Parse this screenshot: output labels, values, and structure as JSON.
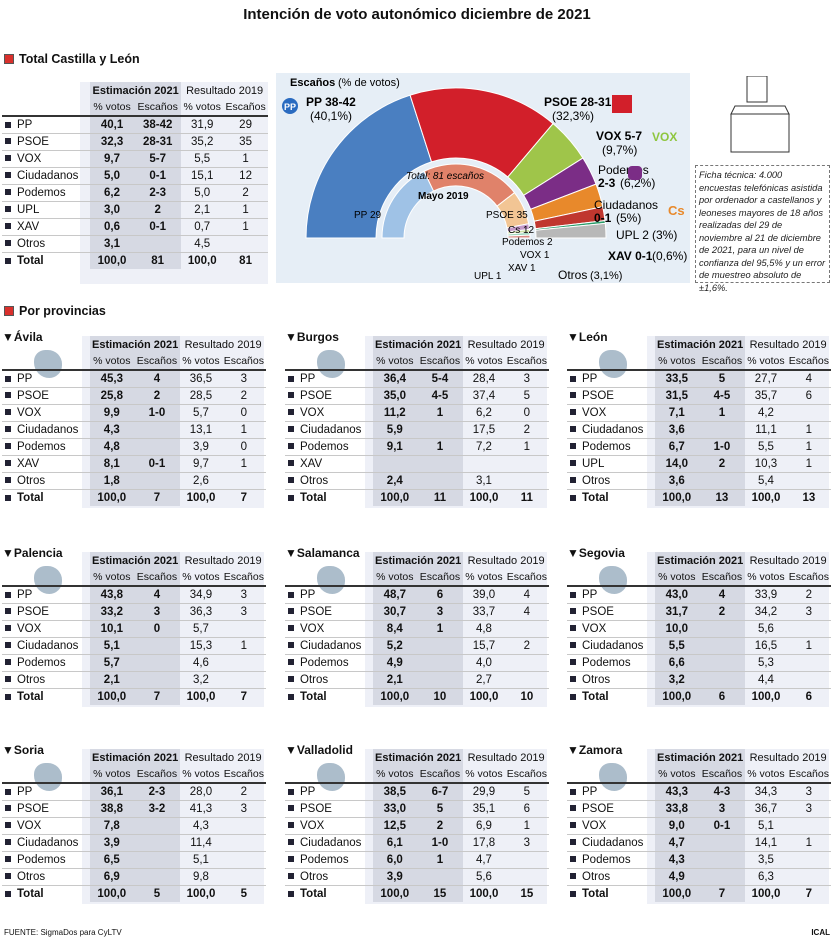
{
  "title": "Intención de voto autonómico diciembre de 2021",
  "total_section": "Total Castilla y León",
  "provinces_section": "Por provincias",
  "headers": {
    "est": "Estimación 2021",
    "res": "Resultado 2019",
    "pct": "% votos",
    "esc": "Escaños"
  },
  "total_rows": [
    {
      "party": "PP",
      "e_pct": "40,1",
      "e_esc": "38-42",
      "r_pct": "31,9",
      "r_esc": "29"
    },
    {
      "party": "PSOE",
      "e_pct": "32,3",
      "e_esc": "28-31",
      "r_pct": "35,2",
      "r_esc": "35"
    },
    {
      "party": "VOX",
      "e_pct": "9,7",
      "e_esc": "5-7",
      "r_pct": "5,5",
      "r_esc": "1"
    },
    {
      "party": "Ciudadanos",
      "e_pct": "5,0",
      "e_esc": "0-1",
      "r_pct": "15,1",
      "r_esc": "12"
    },
    {
      "party": "Podemos",
      "e_pct": "6,2",
      "e_esc": "2-3",
      "r_pct": "5,0",
      "r_esc": "2"
    },
    {
      "party": "UPL",
      "e_pct": "3,0",
      "e_esc": "2",
      "r_pct": "2,1",
      "r_esc": "1"
    },
    {
      "party": "XAV",
      "e_pct": "0,6",
      "e_esc": "0-1",
      "r_pct": "0,7",
      "r_esc": "1"
    },
    {
      "party": "Otros",
      "e_pct": "3,1",
      "e_esc": "",
      "r_pct": "4,5",
      "r_esc": ""
    },
    {
      "party": "Total",
      "e_pct": "100,0",
      "e_esc": "81",
      "r_pct": "100,0",
      "r_esc": "81"
    }
  ],
  "chart": {
    "title": "Escaños",
    "subtitle": "(% de votos)",
    "total_label": "Total: 81 escaños",
    "mayo": "Mayo 2019",
    "labels": {
      "pp": "PP 38-42",
      "pp_pct": "(40,1%)",
      "psoe": "PSOE 28-31",
      "psoe_pct": "(32,3%)",
      "vox": "VOX 5-7",
      "vox_pct": "(9,7%)",
      "pod1": "Podemos",
      "pod2": "2-3",
      "pod_pct": "(6,2%)",
      "cs1": "Ciudadanos",
      "cs2": "0-1",
      "cs_pct": "(5%)",
      "upl": "UPL 2",
      "upl_pct": "(3%)",
      "xav": "XAV 0-1",
      "xav_pct": "(0,6%)",
      "otros": "Otros",
      "otros_pct": "(3,1%)",
      "i_pp": "PP 29",
      "i_psoe": "PSOE 35",
      "i_cs": "Cs 12",
      "i_pod": "Podemos 2",
      "i_vox": "VOX 1",
      "i_xav": "XAV 1",
      "i_upl": "UPL 1"
    },
    "logos": {
      "pp": "PP",
      "vox": "VOX",
      "cs": "Cs"
    }
  },
  "chart_data": {
    "type": "pie",
    "title": "Escaños",
    "series": [
      {
        "name": "Estimación 2021",
        "categories": [
          "PP",
          "PSOE",
          "VOX",
          "Podemos",
          "Ciudadanos",
          "UPL",
          "XAV",
          "Otros"
        ],
        "values": [
          40,
          29,
          6,
          2,
          1,
          2,
          1,
          0
        ]
      },
      {
        "name": "Mayo 2019",
        "categories": [
          "PP",
          "PSOE",
          "Cs",
          "Podemos",
          "VOX",
          "XAV",
          "UPL"
        ],
        "values": [
          29,
          35,
          12,
          2,
          1,
          1,
          1
        ]
      }
    ],
    "colors": {
      "PP": "#4a7fc1",
      "PSOE": "#d21f2a",
      "VOX": "#9fc54a",
      "Podemos": "#7b2d86",
      "Ciudadanos": "#e8892b",
      "UPL": "#c0372f",
      "XAV": "#2a9c6a",
      "Otros": "#b8b8b8"
    }
  },
  "ficha": "Ficha técnica: 4.000 encuestas telefónicas asistida por ordenador a castellanos y leoneses mayores de 18 años realizadas del 29 de noviembre al 21 de diciembre de 2021, para un nivel de confianza del 95,5% y un error de muestreo absoluto de ±1,6%.",
  "provinces": [
    {
      "name": "Ávila",
      "rows": [
        [
          "PP",
          "45,3",
          "4",
          "36,5",
          "3"
        ],
        [
          "PSOE",
          "25,8",
          "2",
          "28,5",
          "2"
        ],
        [
          "VOX",
          "9,9",
          "1-0",
          "5,7",
          "0"
        ],
        [
          "Ciudadanos",
          "4,3",
          "",
          "13,1",
          "1"
        ],
        [
          "Podemos",
          "4,8",
          "",
          "3,9",
          "0"
        ],
        [
          "XAV",
          "8,1",
          "0-1",
          "9,7",
          "1"
        ],
        [
          "Otros",
          "1,8",
          "",
          "2,6",
          ""
        ],
        [
          "Total",
          "100,0",
          "7",
          "100,0",
          "7"
        ]
      ]
    },
    {
      "name": "Burgos",
      "rows": [
        [
          "PP",
          "36,4",
          "5-4",
          "28,4",
          "3"
        ],
        [
          "PSOE",
          "35,0",
          "4-5",
          "37,4",
          "5"
        ],
        [
          "VOX",
          "11,2",
          "1",
          "6,2",
          "0"
        ],
        [
          "Ciudadanos",
          "5,9",
          "",
          "17,5",
          "2"
        ],
        [
          "Podemos",
          "9,1",
          "1",
          "7,2",
          "1"
        ],
        [
          "XAV",
          "",
          "",
          "",
          ""
        ],
        [
          "Otros",
          "2,4",
          "",
          "3,1",
          ""
        ],
        [
          "Total",
          "100,0",
          "11",
          "100,0",
          "11"
        ]
      ]
    },
    {
      "name": "León",
      "rows": [
        [
          "PP",
          "33,5",
          "5",
          "27,7",
          "4"
        ],
        [
          "PSOE",
          "31,5",
          "4-5",
          "35,7",
          "6"
        ],
        [
          "VOX",
          "7,1",
          "1",
          "4,2",
          ""
        ],
        [
          "Ciudadanos",
          "3,6",
          "",
          "11,1",
          "1"
        ],
        [
          "Podemos",
          "6,7",
          "1-0",
          "5,5",
          "1"
        ],
        [
          "UPL",
          "14,0",
          "2",
          "10,3",
          "1"
        ],
        [
          "Otros",
          "3,6",
          "",
          "5,4",
          ""
        ],
        [
          "Total",
          "100,0",
          "13",
          "100,0",
          "13"
        ]
      ]
    },
    {
      "name": "Palencia",
      "rows": [
        [
          "PP",
          "43,8",
          "4",
          "34,9",
          "3"
        ],
        [
          "PSOE",
          "33,2",
          "3",
          "36,3",
          "3"
        ],
        [
          "VOX",
          "10,1",
          "0",
          "5,7",
          ""
        ],
        [
          "Ciudadanos",
          "5,1",
          "",
          "15,3",
          "1"
        ],
        [
          "Podemos",
          "5,7",
          "",
          "4,6",
          ""
        ],
        [
          "Otros",
          "2,1",
          "",
          "3,2",
          ""
        ],
        [
          "Total",
          "100,0",
          "7",
          "100,0",
          "7"
        ]
      ]
    },
    {
      "name": "Salamanca",
      "rows": [
        [
          "PP",
          "48,7",
          "6",
          "39,0",
          "4"
        ],
        [
          "PSOE",
          "30,7",
          "3",
          "33,7",
          "4"
        ],
        [
          "VOX",
          "8,4",
          "1",
          "4,8",
          ""
        ],
        [
          "Ciudadanos",
          "5,2",
          "",
          "15,7",
          "2"
        ],
        [
          "Podemos",
          "4,9",
          "",
          "4,0",
          ""
        ],
        [
          "Otros",
          "2,1",
          "",
          "2,7",
          ""
        ],
        [
          "Total",
          "100,0",
          "10",
          "100,0",
          "10"
        ]
      ]
    },
    {
      "name": "Segovia",
      "rows": [
        [
          "PP",
          "43,0",
          "4",
          "33,9",
          "2"
        ],
        [
          "PSOE",
          "31,7",
          "2",
          "34,2",
          "3"
        ],
        [
          "VOX",
          "10,0",
          "",
          "5,6",
          ""
        ],
        [
          "Ciudadanos",
          "5,5",
          "",
          "16,5",
          "1"
        ],
        [
          "Podemos",
          "6,6",
          "",
          "5,3",
          ""
        ],
        [
          "Otros",
          "3,2",
          "",
          "4,4",
          ""
        ],
        [
          "Total",
          "100,0",
          "6",
          "100,0",
          "6"
        ]
      ]
    },
    {
      "name": "Soria",
      "rows": [
        [
          "PP",
          "36,1",
          "2-3",
          "28,0",
          "2"
        ],
        [
          "PSOE",
          "38,8",
          "3-2",
          "41,3",
          "3"
        ],
        [
          "VOX",
          "7,8",
          "",
          "4,3",
          ""
        ],
        [
          "Ciudadanos",
          "3,9",
          "",
          "11,4",
          ""
        ],
        [
          "Podemos",
          "6,5",
          "",
          "5,1",
          ""
        ],
        [
          "Otros",
          "6,9",
          "",
          "9,8",
          ""
        ],
        [
          "Total",
          "100,0",
          "5",
          "100,0",
          "5"
        ]
      ]
    },
    {
      "name": "Valladolid",
      "rows": [
        [
          "PP",
          "38,5",
          "6-7",
          "29,9",
          "5"
        ],
        [
          "PSOE",
          "33,0",
          "5",
          "35,1",
          "6"
        ],
        [
          "VOX",
          "12,5",
          "2",
          "6,9",
          "1"
        ],
        [
          "Ciudadanos",
          "6,1",
          "1-0",
          "17,8",
          "3"
        ],
        [
          "Podemos",
          "6,0",
          "1",
          "4,7",
          ""
        ],
        [
          "Otros",
          "3,9",
          "",
          "5,6",
          ""
        ],
        [
          "Total",
          "100,0",
          "15",
          "100,0",
          "15"
        ]
      ]
    },
    {
      "name": "Zamora",
      "rows": [
        [
          "PP",
          "43,3",
          "4-3",
          "34,3",
          "3"
        ],
        [
          "PSOE",
          "33,8",
          "3",
          "36,7",
          "3"
        ],
        [
          "VOX",
          "9,0",
          "0-1",
          "5,1",
          ""
        ],
        [
          "Ciudadanos",
          "4,7",
          "",
          "14,1",
          "1"
        ],
        [
          "Podemos",
          "4,3",
          "",
          "3,5",
          ""
        ],
        [
          "Otros",
          "4,9",
          "",
          "6,3",
          ""
        ],
        [
          "Total",
          "100,0",
          "7",
          "100,0",
          "7"
        ]
      ]
    }
  ],
  "footer": "FUENTE: SigmaDos para CyLTV",
  "credit": "ICAL"
}
